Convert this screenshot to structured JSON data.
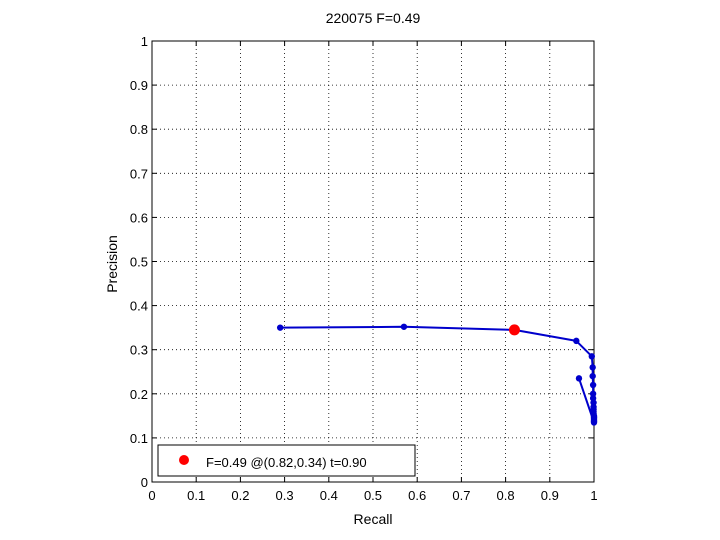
{
  "chart_data": {
    "type": "line",
    "title": "220075 F=0.49",
    "xlabel": "Recall",
    "ylabel": "Precision",
    "xlim": [
      0,
      1
    ],
    "ylim": [
      0,
      1
    ],
    "xticks": [
      "0",
      "0.1",
      "0.2",
      "0.3",
      "0.4",
      "0.5",
      "0.6",
      "0.7",
      "0.8",
      "0.9",
      "1"
    ],
    "yticks": [
      "0",
      "0.1",
      "0.2",
      "0.3",
      "0.4",
      "0.5",
      "0.6",
      "0.7",
      "0.8",
      "0.9",
      "1"
    ],
    "grid": true,
    "series": [
      {
        "color": "#0000cc",
        "x": [
          0.29,
          0.57,
          0.82,
          0.96,
          0.995,
          0.997,
          0.997,
          0.998,
          0.998,
          0.998,
          0.999,
          0.999,
          0.999,
          0.999,
          0.999,
          1.0,
          1.0,
          1.0,
          1.0,
          1.0,
          1.0,
          0.966
        ],
        "y": [
          0.35,
          0.352,
          0.345,
          0.32,
          0.285,
          0.26,
          0.24,
          0.22,
          0.2,
          0.19,
          0.18,
          0.17,
          0.165,
          0.16,
          0.155,
          0.15,
          0.147,
          0.144,
          0.141,
          0.138,
          0.135,
          0.235
        ]
      }
    ],
    "highlight": {
      "x": 0.82,
      "y": 0.345,
      "color": "#ff0000"
    },
    "legend": {
      "position": "bottom-left",
      "label": "F=0.49 @(0.82,0.34) t=0.90"
    }
  }
}
